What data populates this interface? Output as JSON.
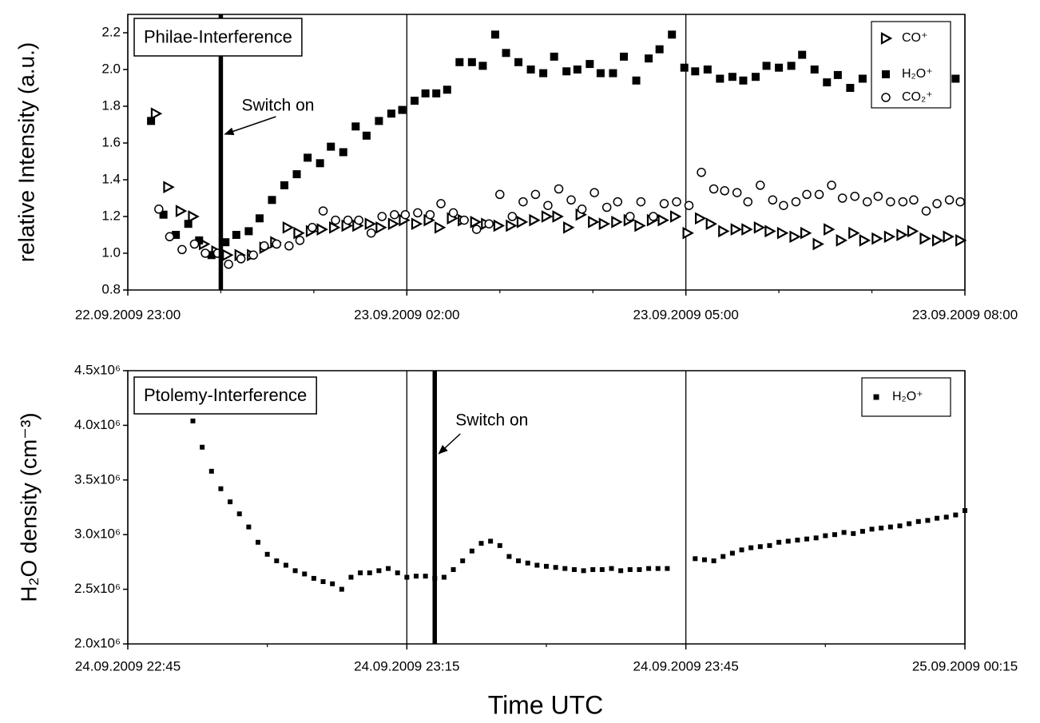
{
  "chart_data": [
    {
      "type": "scatter",
      "annotation": "Philae-Interference",
      "ylabel": "relative Intensity (a.u.)",
      "switch_on": {
        "text": "Switch on",
        "x": "23.09.2009 00:00"
      },
      "xlim": [
        "22.09.2009 23:00",
        "23.09.2009 08:00"
      ],
      "xticks": [
        "22.09.2009 23:00",
        "23.09.2009 02:00",
        "23.09.2009 05:00",
        "23.09.2009 08:00"
      ],
      "xminorticks": [
        "23.09.2009 00:00",
        "23.09.2009 01:00",
        "23.09.2009 03:00",
        "23.09.2009 04:00",
        "23.09.2009 06:00",
        "23.09.2009 07:00"
      ],
      "ylim": [
        0.8,
        2.3
      ],
      "yticks": [
        0.8,
        {
          "value": 1,
          "label": "1.0"
        },
        1.2,
        1.4,
        1.6,
        1.8,
        {
          "value": 2,
          "label": "2.0"
        },
        2.2
      ],
      "xgrid": true,
      "legend": "top-right",
      "series": [
        {
          "name": "CO⁺",
          "color": "#000000",
          "marker": "triangle",
          "x": [
            "22.09.2009 23:18",
            "22.09.2009 23:26",
            "22.09.2009 23:34",
            "22.09.2009 23:42",
            "22.09.2009 23:49",
            "22.09.2009 23:57",
            "23.09.2009 00:04",
            "23.09.2009 00:12",
            "23.09.2009 00:20",
            "23.09.2009 00:28",
            "23.09.2009 00:35",
            "23.09.2009 00:43",
            "23.09.2009 00:50",
            "23.09.2009 00:58",
            "23.09.2009 01:05",
            "23.09.2009 01:13",
            "23.09.2009 01:21",
            "23.09.2009 01:28",
            "23.09.2009 01:36",
            "23.09.2009 01:43",
            "23.09.2009 01:51",
            "23.09.2009 01:58",
            "23.09.2009 02:06",
            "23.09.2009 02:14",
            "23.09.2009 02:21",
            "23.09.2009 02:29",
            "23.09.2009 02:36",
            "23.09.2009 02:44",
            "23.09.2009 02:51",
            "23.09.2009 02:59",
            "23.09.2009 03:07",
            "23.09.2009 03:14",
            "23.09.2009 03:22",
            "23.09.2009 03:30",
            "23.09.2009 03:37",
            "23.09.2009 03:44",
            "23.09.2009 03:52",
            "23.09.2009 04:00",
            "23.09.2009 04:07",
            "23.09.2009 04:15",
            "23.09.2009 04:23",
            "23.09.2009 04:30",
            "23.09.2009 04:38",
            "23.09.2009 04:45",
            "23.09.2009 04:53",
            "23.09.2009 05:01",
            "23.09.2009 05:09",
            "23.09.2009 05:16",
            "23.09.2009 05:24",
            "23.09.2009 05:32",
            "23.09.2009 05:39",
            "23.09.2009 05:47",
            "23.09.2009 05:54",
            "23.09.2009 06:02",
            "23.09.2009 06:10",
            "23.09.2009 06:17",
            "23.09.2009 06:25",
            "23.09.2009 06:32",
            "23.09.2009 06:40",
            "23.09.2009 06:48",
            "23.09.2009 06:55",
            "23.09.2009 07:03",
            "23.09.2009 07:11",
            "23.09.2009 07:19",
            "23.09.2009 07:26",
            "23.09.2009 07:34",
            "23.09.2009 07:42",
            "23.09.2009 07:49",
            "23.09.2009 07:57"
          ],
          "values": [
            1.76,
            1.36,
            1.23,
            1.2,
            1.05,
            1.01,
            0.99,
            0.99,
            0.99,
            1.03,
            1.06,
            1.14,
            1.11,
            1.12,
            1.13,
            1.14,
            1.15,
            1.15,
            1.16,
            1.14,
            1.16,
            1.18,
            1.16,
            1.18,
            1.14,
            1.19,
            1.18,
            1.17,
            1.16,
            1.15,
            1.15,
            1.17,
            1.18,
            1.2,
            1.2,
            1.14,
            1.21,
            1.17,
            1.16,
            1.17,
            1.18,
            1.15,
            1.18,
            1.18,
            1.2,
            1.11,
            1.19,
            1.16,
            1.12,
            1.13,
            1.13,
            1.14,
            1.12,
            1.11,
            1.09,
            1.11,
            1.05,
            1.13,
            1.07,
            1.11,
            1.07,
            1.08,
            1.09,
            1.1,
            1.12,
            1.08,
            1.07,
            1.09,
            1.07
          ]
        },
        {
          "name": "H₂O⁺",
          "color": "#000000",
          "marker": "square",
          "x": [
            "22.09.2009 23:15",
            "22.09.2009 23:23",
            "22.09.2009 23:31",
            "22.09.2009 23:39",
            "22.09.2009 23:46",
            "22.09.2009 23:54",
            "23.09.2009 00:03",
            "23.09.2009 00:10",
            "23.09.2009 00:18",
            "23.09.2009 00:25",
            "23.09.2009 00:33",
            "23.09.2009 00:41",
            "23.09.2009 00:49",
            "23.09.2009 00:56",
            "23.09.2009 01:04",
            "23.09.2009 01:11",
            "23.09.2009 01:19",
            "23.09.2009 01:27",
            "23.09.2009 01:34",
            "23.09.2009 01:42",
            "23.09.2009 01:50",
            "23.09.2009 01:57",
            "23.09.2009 02:05",
            "23.09.2009 02:12",
            "23.09.2009 02:19",
            "23.09.2009 02:26",
            "23.09.2009 02:34",
            "23.09.2009 02:42",
            "23.09.2009 02:49",
            "23.09.2009 02:57",
            "23.09.2009 03:04",
            "23.09.2009 03:12",
            "23.09.2009 03:20",
            "23.09.2009 03:28",
            "23.09.2009 03:35",
            "23.09.2009 03:43",
            "23.09.2009 03:50",
            "23.09.2009 03:58",
            "23.09.2009 04:05",
            "23.09.2009 04:13",
            "23.09.2009 04:20",
            "23.09.2009 04:28",
            "23.09.2009 04:36",
            "23.09.2009 04:43",
            "23.09.2009 04:51",
            "23.09.2009 04:59",
            "23.09.2009 05:06",
            "23.09.2009 05:14",
            "23.09.2009 05:22",
            "23.09.2009 05:30",
            "23.09.2009 05:37",
            "23.09.2009 05:45",
            "23.09.2009 05:52",
            "23.09.2009 06:00",
            "23.09.2009 06:08",
            "23.09.2009 06:15",
            "23.09.2009 06:23",
            "23.09.2009 06:31",
            "23.09.2009 06:38",
            "23.09.2009 06:46",
            "23.09.2009 06:54",
            "23.09.2009 07:54"
          ],
          "values": [
            1.72,
            1.21,
            1.1,
            1.16,
            1.07,
            0.99,
            1.06,
            1.1,
            1.12,
            1.19,
            1.29,
            1.37,
            1.43,
            1.52,
            1.49,
            1.58,
            1.55,
            1.69,
            1.64,
            1.72,
            1.76,
            1.78,
            1.83,
            1.87,
            1.87,
            1.89,
            2.04,
            2.04,
            2.02,
            2.19,
            2.09,
            2.04,
            2.0,
            1.98,
            2.07,
            1.99,
            2.0,
            2.03,
            1.98,
            1.98,
            2.07,
            1.94,
            2.06,
            2.11,
            2.19,
            2.01,
            1.99,
            2.0,
            1.95,
            1.96,
            1.94,
            1.96,
            2.02,
            2.01,
            2.02,
            2.08,
            2.0,
            1.93,
            1.97,
            1.9,
            1.95,
            1.95
          ]
        },
        {
          "name": "CO₂⁺",
          "color": "#000000",
          "marker": "circle",
          "x": [
            "22.09.2009 23:20",
            "22.09.2009 23:27",
            "22.09.2009 23:35",
            "22.09.2009 23:43",
            "22.09.2009 23:50",
            "22.09.2009 23:58",
            "23.09.2009 00:05",
            "23.09.2009 00:13",
            "23.09.2009 00:21",
            "23.09.2009 00:28",
            "23.09.2009 00:36",
            "23.09.2009 00:44",
            "23.09.2009 00:51",
            "23.09.2009 00:59",
            "23.09.2009 01:06",
            "23.09.2009 01:14",
            "23.09.2009 01:22",
            "23.09.2009 01:29",
            "23.09.2009 01:37",
            "23.09.2009 01:44",
            "23.09.2009 01:52",
            "23.09.2009 01:59",
            "23.09.2009 02:07",
            "23.09.2009 02:15",
            "23.09.2009 02:22",
            "23.09.2009 02:30",
            "23.09.2009 02:37",
            "23.09.2009 02:45",
            "23.09.2009 02:53",
            "23.09.2009 03:00",
            "23.09.2009 03:08",
            "23.09.2009 03:15",
            "23.09.2009 03:23",
            "23.09.2009 03:31",
            "23.09.2009 03:38",
            "23.09.2009 03:46",
            "23.09.2009 03:53",
            "23.09.2009 04:01",
            "23.09.2009 04:09",
            "23.09.2009 04:16",
            "23.09.2009 04:24",
            "23.09.2009 04:31",
            "23.09.2009 04:39",
            "23.09.2009 04:46",
            "23.09.2009 04:54",
            "23.09.2009 05:02",
            "23.09.2009 05:10",
            "23.09.2009 05:18",
            "23.09.2009 05:25",
            "23.09.2009 05:33",
            "23.09.2009 05:40",
            "23.09.2009 05:48",
            "23.09.2009 05:56",
            "23.09.2009 06:03",
            "23.09.2009 06:11",
            "23.09.2009 06:18",
            "23.09.2009 06:26",
            "23.09.2009 06:34",
            "23.09.2009 06:41",
            "23.09.2009 06:49",
            "23.09.2009 06:57",
            "23.09.2009 07:04",
            "23.09.2009 07:12",
            "23.09.2009 07:20",
            "23.09.2009 07:27",
            "23.09.2009 07:35",
            "23.09.2009 07:42",
            "23.09.2009 07:50",
            "23.09.2009 07:57"
          ],
          "values": [
            1.24,
            1.09,
            1.02,
            1.05,
            1.0,
            1.0,
            0.94,
            0.97,
            0.99,
            1.04,
            1.05,
            1.04,
            1.07,
            1.14,
            1.23,
            1.18,
            1.18,
            1.18,
            1.11,
            1.2,
            1.21,
            1.21,
            1.22,
            1.21,
            1.27,
            1.22,
            1.18,
            1.13,
            1.16,
            1.32,
            1.2,
            1.28,
            1.32,
            1.26,
            1.35,
            1.29,
            1.24,
            1.33,
            1.25,
            1.28,
            1.2,
            1.28,
            1.2,
            1.27,
            1.28,
            1.26,
            1.44,
            1.35,
            1.34,
            1.33,
            1.28,
            1.37,
            1.29,
            1.26,
            1.28,
            1.32,
            1.32,
            1.37,
            1.3,
            1.31,
            1.28,
            1.31,
            1.28,
            1.28,
            1.29,
            1.23,
            1.27,
            1.29,
            1.28
          ]
        }
      ]
    },
    {
      "type": "scatter",
      "annotation": "Ptolemy-Interference",
      "ylabel": "H₂O density (cm⁻³)",
      "xlabel": "Time UTC",
      "switch_on": {
        "text": "Switch on",
        "x": "24.09.2009 23:18"
      },
      "xlim": [
        "24.09.2009 22:45",
        "25.09.2009 00:15"
      ],
      "xticks": [
        "24.09.2009 22:45",
        "24.09.2009 23:15",
        "24.09.2009 23:45",
        "25.09.2009 00:15"
      ],
      "xminorticks": [
        "24.09.2009 23:00",
        "24.09.2009 23:30",
        "25.09.2009 00:00"
      ],
      "ylim": [
        2000000,
        4500000
      ],
      "yticks": [
        {
          "value": 2000000,
          "label": "2.0x10⁶"
        },
        {
          "value": 2500000,
          "label": "2.5x10⁶"
        },
        {
          "value": 3000000,
          "label": "3.0x10⁶"
        },
        {
          "value": 3500000,
          "label": "3.5x10⁶"
        },
        {
          "value": 4000000,
          "label": "4.0x10⁶"
        },
        {
          "value": 4500000,
          "label": "4.5x10⁶"
        }
      ],
      "xgrid": true,
      "legend": "top-right",
      "series": [
        {
          "name": "H₂O⁺",
          "color": "#000000",
          "marker": "square",
          "x": [
            "24.09.2009 22:52",
            "24.09.2009 22:53",
            "24.09.2009 22:54",
            "24.09.2009 22:55",
            "24.09.2009 22:56",
            "24.09.2009 22:57",
            "24.09.2009 22:58",
            "24.09.2009 22:59",
            "24.09.2009 23:00",
            "24.09.2009 23:01",
            "24.09.2009 23:02",
            "24.09.2009 23:03",
            "24.09.2009 23:04",
            "24.09.2009 23:05",
            "24.09.2009 23:06",
            "24.09.2009 23:07",
            "24.09.2009 23:08",
            "24.09.2009 23:09",
            "24.09.2009 23:10",
            "24.09.2009 23:11",
            "24.09.2009 23:12",
            "24.09.2009 23:13",
            "24.09.2009 23:14",
            "24.09.2009 23:15",
            "24.09.2009 23:16",
            "24.09.2009 23:17",
            "24.09.2009 23:18",
            "24.09.2009 23:19",
            "24.09.2009 23:20",
            "24.09.2009 23:21",
            "24.09.2009 23:22",
            "24.09.2009 23:23",
            "24.09.2009 23:24",
            "24.09.2009 23:25",
            "24.09.2009 23:26",
            "24.09.2009 23:27",
            "24.09.2009 23:28",
            "24.09.2009 23:29",
            "24.09.2009 23:30",
            "24.09.2009 23:31",
            "24.09.2009 23:32",
            "24.09.2009 23:33",
            "24.09.2009 23:34",
            "24.09.2009 23:35",
            "24.09.2009 23:36",
            "24.09.2009 23:37",
            "24.09.2009 23:38",
            "24.09.2009 23:39",
            "24.09.2009 23:40",
            "24.09.2009 23:41",
            "24.09.2009 23:42",
            "24.09.2009 23:43",
            "24.09.2009 23:46",
            "24.09.2009 23:47",
            "24.09.2009 23:48",
            "24.09.2009 23:49",
            "24.09.2009 23:50",
            "24.09.2009 23:51",
            "24.09.2009 23:52",
            "24.09.2009 23:53",
            "24.09.2009 23:54",
            "24.09.2009 23:55",
            "24.09.2009 23:56",
            "24.09.2009 23:57",
            "24.09.2009 23:58",
            "24.09.2009 23:59",
            "25.09.2009 00:00",
            "25.09.2009 00:01",
            "25.09.2009 00:02",
            "25.09.2009 00:03",
            "25.09.2009 00:04",
            "25.09.2009 00:05",
            "25.09.2009 00:06",
            "25.09.2009 00:07",
            "25.09.2009 00:08",
            "25.09.2009 00:09",
            "25.09.2009 00:10",
            "25.09.2009 00:11",
            "25.09.2009 00:12",
            "25.09.2009 00:13",
            "25.09.2009 00:14",
            "25.09.2009 00:15"
          ],
          "values": [
            4040000,
            3800000,
            3580000,
            3420000,
            3300000,
            3190000,
            3070000,
            2930000,
            2820000,
            2760000,
            2720000,
            2670000,
            2640000,
            2600000,
            2570000,
            2550000,
            2500000,
            2610000,
            2650000,
            2650000,
            2670000,
            2690000,
            2650000,
            2610000,
            2620000,
            2620000,
            2600000,
            2610000,
            2680000,
            2760000,
            2850000,
            2920000,
            2940000,
            2900000,
            2800000,
            2760000,
            2740000,
            2720000,
            2710000,
            2700000,
            2690000,
            2680000,
            2670000,
            2680000,
            2680000,
            2690000,
            2670000,
            2680000,
            2680000,
            2690000,
            2690000,
            2690000,
            2780000,
            2770000,
            2760000,
            2800000,
            2830000,
            2860000,
            2880000,
            2890000,
            2900000,
            2930000,
            2940000,
            2950000,
            2960000,
            2970000,
            2990000,
            3000000,
            3020000,
            3010000,
            3030000,
            3050000,
            3060000,
            3070000,
            3080000,
            3100000,
            3120000,
            3130000,
            3150000,
            3160000,
            3180000,
            3220000
          ]
        }
      ]
    }
  ]
}
